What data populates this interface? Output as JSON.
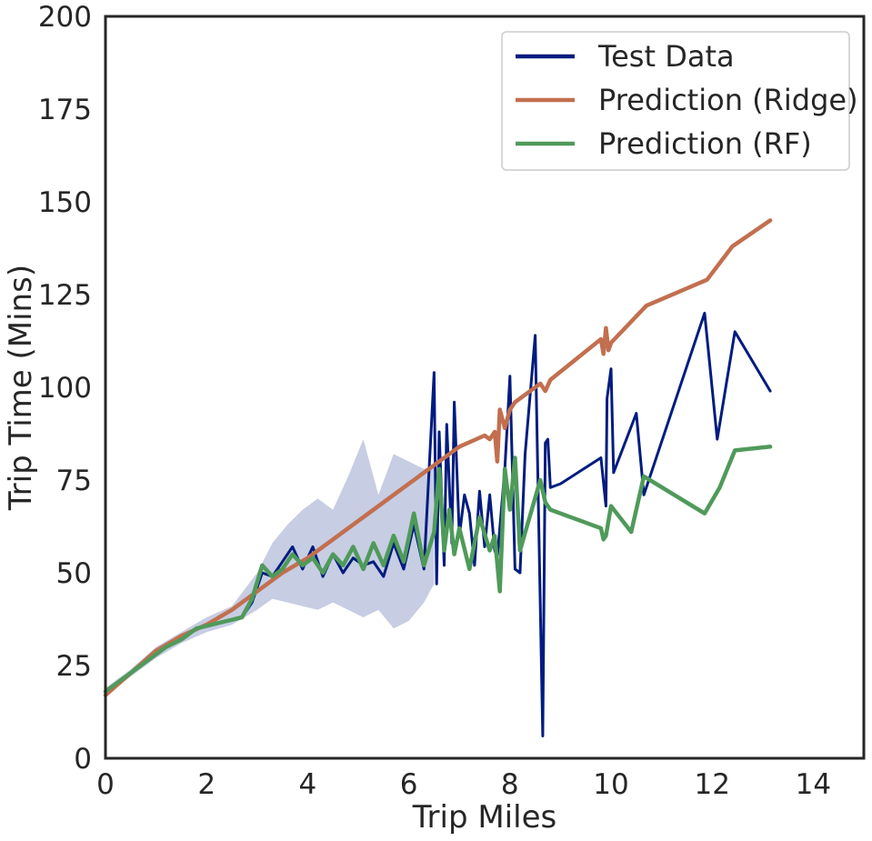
{
  "chart_data": {
    "type": "line",
    "title": "",
    "xlabel": "Trip Miles",
    "ylabel": "Trip Time (Mins)",
    "xlim": [
      0,
      15
    ],
    "ylim": [
      0,
      200
    ],
    "xticks": [
      "0",
      "2",
      "4",
      "6",
      "8",
      "10",
      "12",
      "14"
    ],
    "yticks": [
      "0",
      "25",
      "50",
      "75",
      "100",
      "125",
      "150",
      "175",
      "200"
    ],
    "grid": false,
    "legend_position": "top-right",
    "series": [
      {
        "name": "Test Data",
        "color": "#001c7f",
        "x": [
          0,
          0.3,
          0.6,
          0.9,
          1.2,
          1.5,
          1.8,
          2.1,
          2.4,
          2.7,
          2.9,
          3.1,
          3.3,
          3.5,
          3.7,
          3.9,
          4.1,
          4.3,
          4.5,
          4.7,
          4.9,
          5.1,
          5.3,
          5.5,
          5.7,
          5.9,
          6.1,
          6.3,
          6.5,
          6.55,
          6.6,
          6.7,
          6.75,
          6.85,
          6.9,
          7.0,
          7.1,
          7.2,
          7.3,
          7.4,
          7.5,
          7.6,
          7.7,
          7.75,
          7.9,
          8.0,
          8.1,
          8.2,
          8.3,
          8.5,
          8.65,
          8.7,
          8.75,
          8.8,
          9.0,
          9.8,
          9.9,
          9.92,
          10.0,
          10.05,
          10.5,
          10.65,
          11.85,
          12.1,
          12.45,
          13.15
        ],
        "values": [
          18,
          21,
          24,
          27,
          30,
          32,
          35,
          36,
          37,
          38,
          42,
          50,
          49,
          53,
          57,
          51,
          57,
          49,
          55,
          50,
          54,
          52,
          53,
          49,
          58,
          51,
          63,
          51,
          104,
          47,
          88,
          52,
          90,
          58,
          96,
          60,
          71,
          66,
          52,
          72,
          57,
          71,
          56,
          54,
          78,
          103,
          51,
          50,
          82,
          114,
          6,
          85,
          86,
          73,
          74,
          81,
          68,
          97,
          105,
          77,
          93,
          71,
          120,
          86,
          115,
          99
        ]
      },
      {
        "name": "Prediction (Ridge)",
        "color": "#c26f4f",
        "x": [
          0,
          0.5,
          1.0,
          1.5,
          2.0,
          2.5,
          3.0,
          3.5,
          4.0,
          4.5,
          5.0,
          5.5,
          6.0,
          6.5,
          7.0,
          7.5,
          7.6,
          7.7,
          7.75,
          7.8,
          7.9,
          8.0,
          8.1,
          8.6,
          8.7,
          8.8,
          9.8,
          9.85,
          9.9,
          9.95,
          10.0,
          10.7,
          11.9,
          12.4,
          13.15
        ],
        "values": [
          17,
          23,
          29,
          33,
          36,
          40,
          45,
          50,
          54,
          59,
          64,
          69,
          74,
          79,
          84,
          87,
          86,
          88,
          80,
          94,
          89,
          94,
          96,
          101,
          99,
          102,
          113,
          109,
          116,
          110,
          112,
          122,
          129,
          138,
          145
        ]
      },
      {
        "name": "Prediction (RF)",
        "color": "#4f9a5a",
        "x": [
          0,
          0.3,
          0.6,
          0.9,
          1.2,
          1.5,
          1.8,
          2.1,
          2.4,
          2.7,
          2.9,
          3.1,
          3.3,
          3.5,
          3.7,
          3.9,
          4.1,
          4.3,
          4.5,
          4.7,
          4.9,
          5.1,
          5.3,
          5.5,
          5.7,
          5.9,
          6.1,
          6.3,
          6.5,
          6.6,
          6.7,
          6.8,
          6.9,
          7.0,
          7.2,
          7.4,
          7.6,
          7.7,
          7.8,
          7.9,
          8.0,
          8.1,
          8.2,
          8.6,
          8.7,
          8.8,
          9.8,
          9.85,
          9.9,
          10.0,
          10.4,
          10.65,
          11.85,
          12.15,
          12.45,
          13.15
        ],
        "values": [
          18,
          21,
          24,
          27,
          30,
          32,
          35,
          36,
          37,
          38,
          43,
          52,
          49,
          51,
          55,
          52,
          54,
          50,
          55,
          52,
          57,
          51,
          58,
          52,
          60,
          53,
          66,
          52,
          61,
          78,
          56,
          67,
          55,
          62,
          51,
          65,
          56,
          60,
          45,
          78,
          67,
          81,
          56,
          75,
          69,
          67,
          62,
          59,
          60,
          68,
          61,
          76,
          66,
          73,
          83,
          84
        ]
      }
    ],
    "band": {
      "series": "Test Data",
      "color": "#001c7f",
      "x": [
        0,
        0.5,
        1.0,
        1.5,
        2.0,
        2.5,
        3.0,
        3.3,
        3.6,
        3.9,
        4.2,
        4.5,
        4.8,
        5.1,
        5.4,
        5.7,
        6.0,
        6.3,
        6.5
      ],
      "lower": [
        17,
        22,
        27,
        31,
        34,
        36,
        40,
        43,
        42,
        41,
        40,
        42,
        40,
        38,
        40,
        35,
        37,
        42,
        47
      ],
      "upper": [
        19,
        24,
        30,
        34,
        38,
        41,
        50,
        58,
        63,
        67,
        70,
        67,
        76,
        86,
        71,
        82,
        80,
        78,
        79
      ]
    }
  }
}
